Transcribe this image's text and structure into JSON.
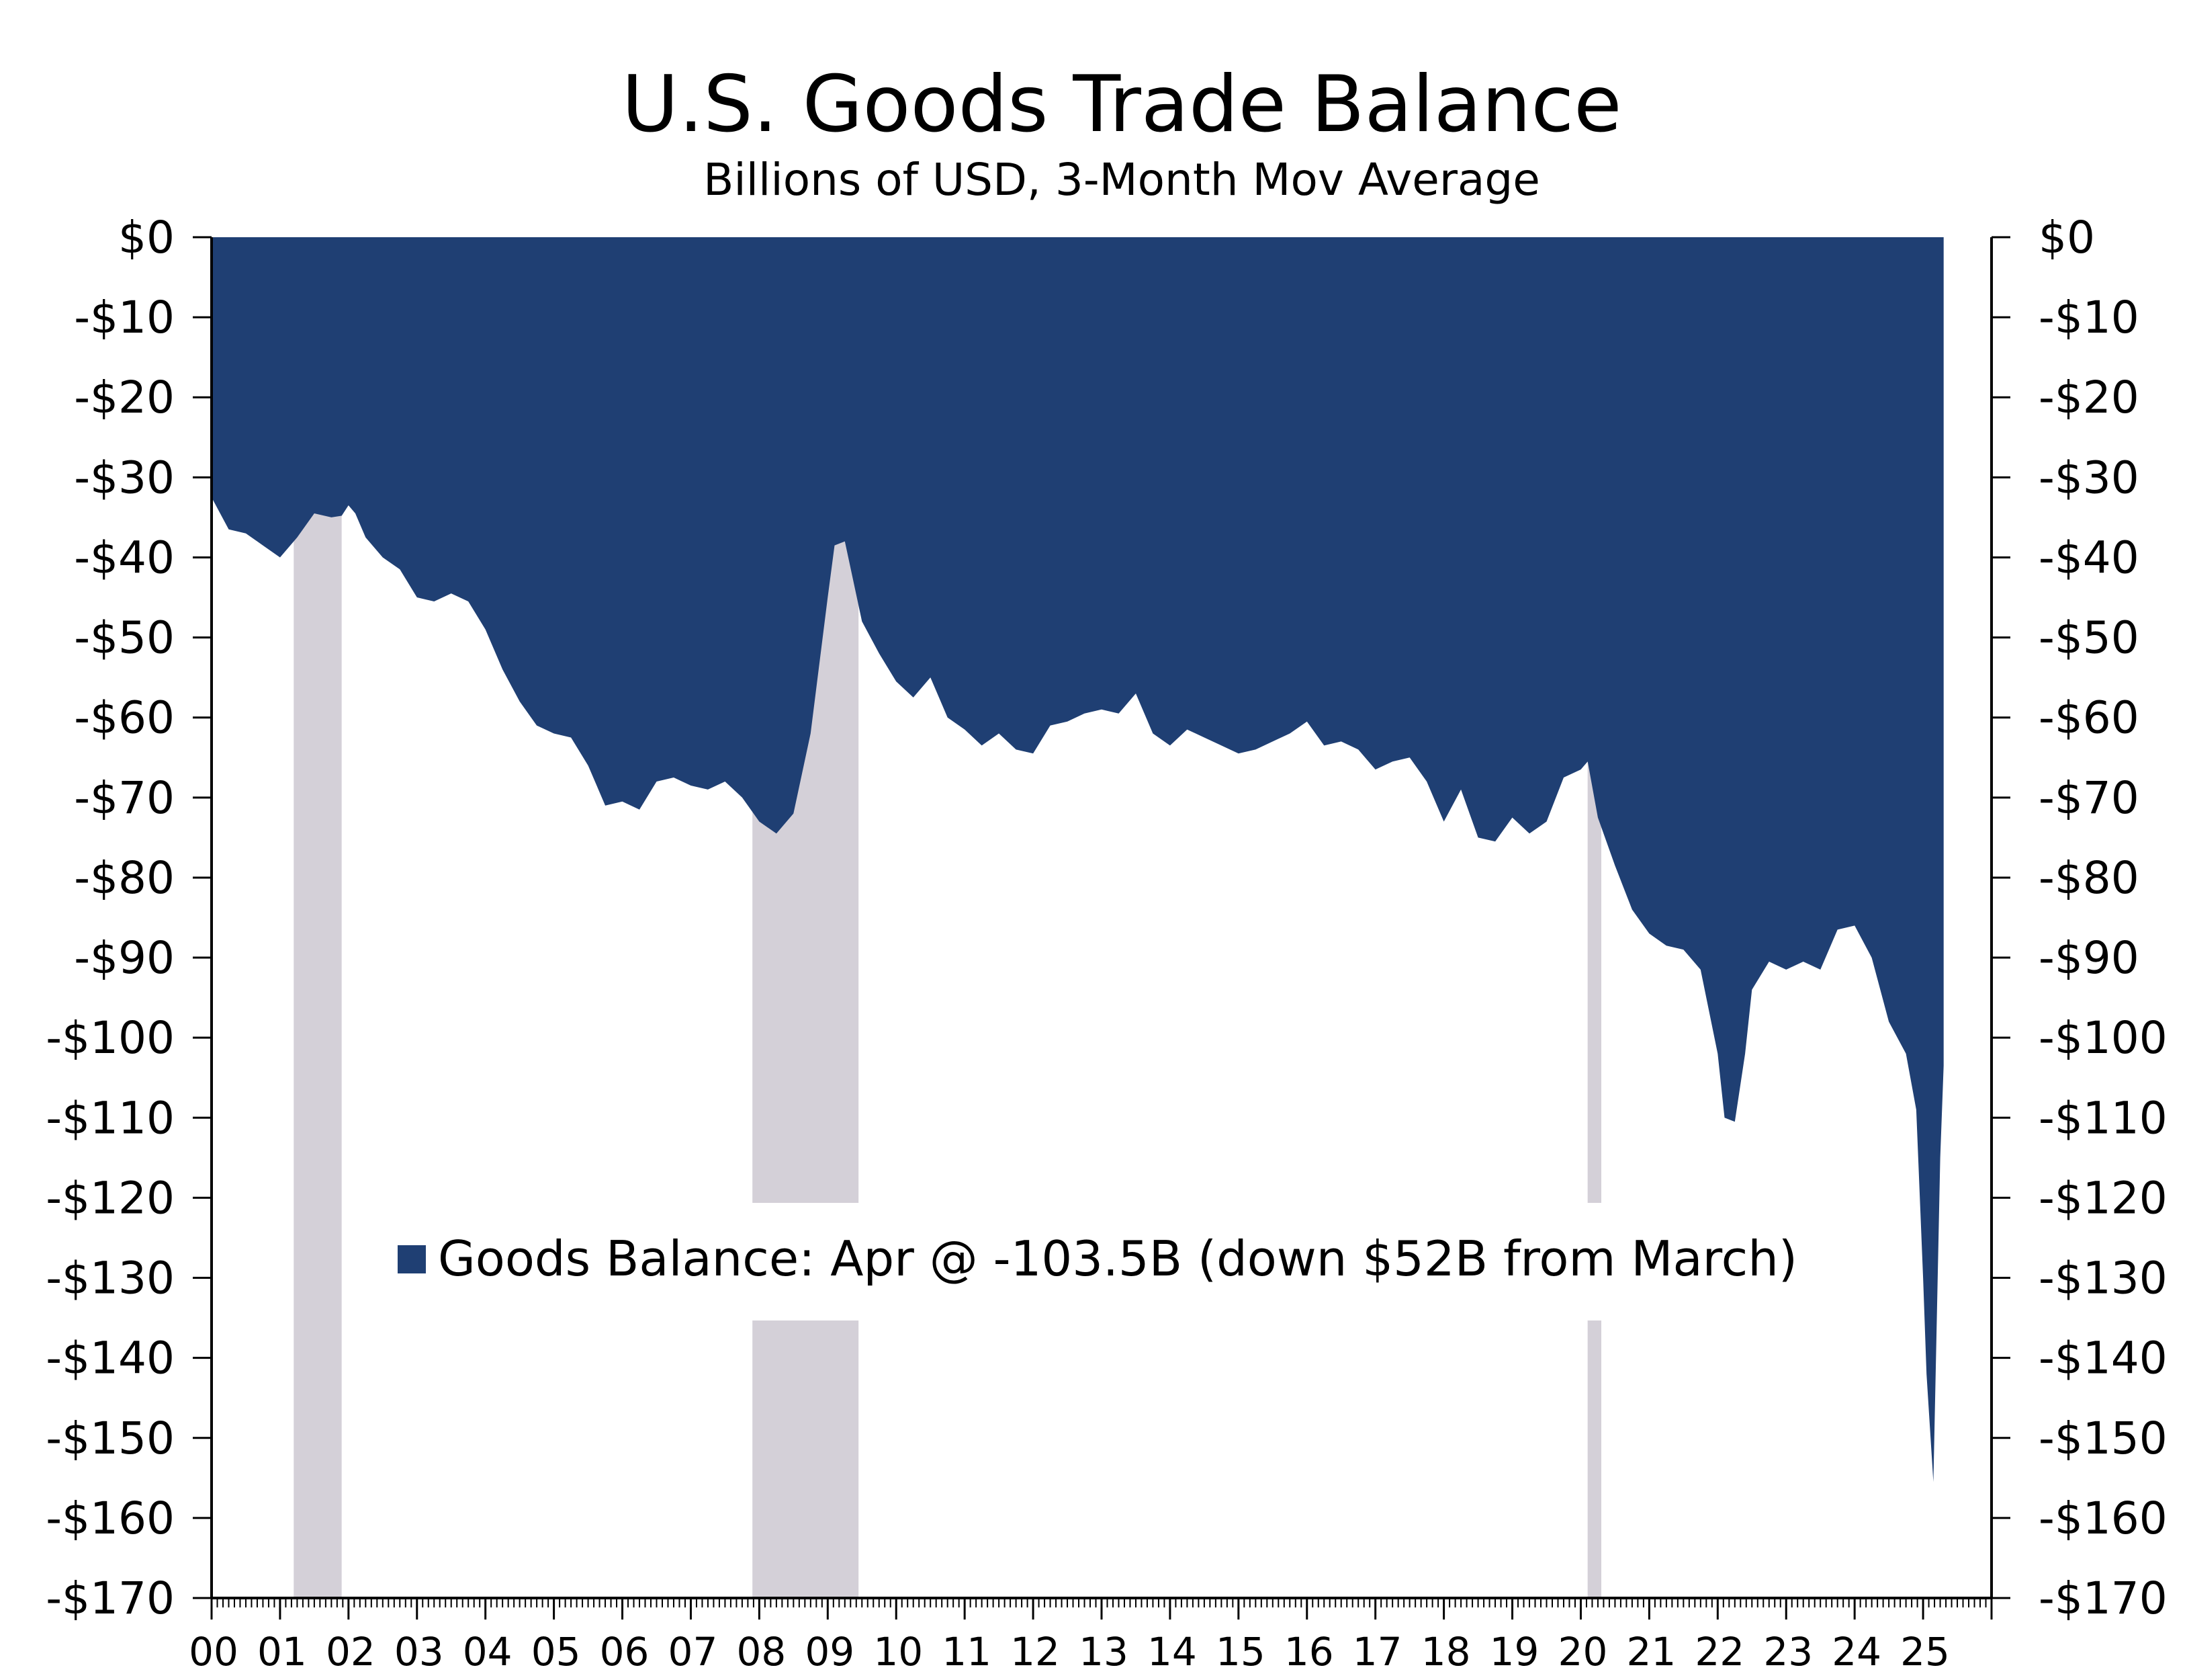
{
  "chart_data": {
    "type": "area",
    "title": "U.S. Goods Trade Balance",
    "subtitle": "Billions of USD, 3-Month Mov Average",
    "xlabel": "",
    "ylabel": "",
    "ylim": [
      -170,
      0
    ],
    "y_ticks": [
      0,
      -10,
      -20,
      -30,
      -40,
      -50,
      -60,
      -70,
      -80,
      -90,
      -100,
      -110,
      -120,
      -130,
      -140,
      -150,
      -160,
      -170
    ],
    "y_tick_labels": [
      "$0",
      "-$10",
      "-$20",
      "-$30",
      "-$40",
      "-$50",
      "-$60",
      "-$70",
      "-$80",
      "-$90",
      "-$100",
      "-$110",
      "-$120",
      "-$130",
      "-$140",
      "-$150",
      "-$160",
      "-$170"
    ],
    "x_tick_labels": [
      "00",
      "01",
      "02",
      "03",
      "04",
      "05",
      "06",
      "07",
      "08",
      "09",
      "10",
      "11",
      "12",
      "13",
      "14",
      "15",
      "16",
      "17",
      "18",
      "19",
      "20",
      "21",
      "22",
      "23",
      "24",
      "25"
    ],
    "xlim": [
      2000.0,
      2026.0
    ],
    "grid": false,
    "legend_position": "center-bottom",
    "colors": {
      "area": "#1f3f73",
      "recession": "#d4d0d8",
      "axis": "#000000"
    },
    "recessions": [
      [
        2001.2,
        2001.9
      ],
      [
        2007.9,
        2009.45
      ],
      [
        2020.1,
        2020.3
      ]
    ],
    "series": [
      {
        "name": "Goods Balance: Apr @ -103.5B (down $52B from March)",
        "x": [
          2000.0,
          2000.25,
          2000.5,
          2000.75,
          2001.0,
          2001.25,
          2001.5,
          2001.75,
          2001.9,
          2002.0,
          2002.1,
          2002.25,
          2002.5,
          2002.75,
          2003.0,
          2003.25,
          2003.5,
          2003.75,
          2004.0,
          2004.25,
          2004.5,
          2004.75,
          2005.0,
          2005.25,
          2005.5,
          2005.75,
          2006.0,
          2006.25,
          2006.5,
          2006.75,
          2007.0,
          2007.25,
          2007.5,
          2007.75,
          2008.0,
          2008.25,
          2008.5,
          2008.75,
          2009.0,
          2009.1,
          2009.25,
          2009.4,
          2009.5,
          2009.75,
          2010.0,
          2010.25,
          2010.5,
          2010.75,
          2011.0,
          2011.25,
          2011.5,
          2011.75,
          2012.0,
          2012.25,
          2012.5,
          2012.75,
          2013.0,
          2013.25,
          2013.5,
          2013.75,
          2014.0,
          2014.25,
          2014.5,
          2014.75,
          2015.0,
          2015.25,
          2015.5,
          2015.75,
          2016.0,
          2016.25,
          2016.5,
          2016.75,
          2017.0,
          2017.25,
          2017.5,
          2017.75,
          2018.0,
          2018.25,
          2018.5,
          2018.75,
          2019.0,
          2019.25,
          2019.5,
          2019.75,
          2020.0,
          2020.1,
          2020.25,
          2020.5,
          2020.75,
          2021.0,
          2021.25,
          2021.5,
          2021.75,
          2022.0,
          2022.1,
          2022.25,
          2022.4,
          2022.5,
          2022.75,
          2023.0,
          2023.25,
          2023.5,
          2023.75,
          2024.0,
          2024.25,
          2024.5,
          2024.75,
          2024.9,
          2025.0,
          2025.05,
          2025.15,
          2025.25,
          2025.3
        ],
        "values": [
          -32.5,
          -36.5,
          -37.0,
          -38.5,
          -40.0,
          -37.5,
          -34.5,
          -35.0,
          -34.8,
          -33.5,
          -34.5,
          -37.5,
          -40.0,
          -41.5,
          -45.0,
          -45.5,
          -44.5,
          -45.5,
          -49.0,
          -54.0,
          -58.0,
          -61.0,
          -62.0,
          -62.5,
          -66.0,
          -71.0,
          -70.5,
          -71.5,
          -68.0,
          -67.5,
          -68.5,
          -69.0,
          -68.0,
          -70.0,
          -73.0,
          -74.5,
          -72.0,
          -62.0,
          -45.0,
          -38.5,
          -38.0,
          -44.0,
          -48.0,
          -52.0,
          -55.5,
          -57.5,
          -55.0,
          -60.0,
          -61.5,
          -63.5,
          -62.0,
          -64.0,
          -64.5,
          -61.0,
          -60.5,
          -59.5,
          -59.0,
          -59.5,
          -57.0,
          -62.0,
          -63.5,
          -61.5,
          -62.5,
          -63.5,
          -64.5,
          -64.0,
          -63.0,
          -62.0,
          -60.5,
          -63.5,
          -63.0,
          -64.0,
          -66.5,
          -65.5,
          -65.0,
          -68.0,
          -73.0,
          -69.0,
          -75.0,
          -75.5,
          -72.5,
          -74.5,
          -73.0,
          -67.5,
          -66.5,
          -65.5,
          -72.5,
          -78.5,
          -84.0,
          -87.0,
          -88.5,
          -89.0,
          -91.5,
          -102.0,
          -110.0,
          -110.5,
          -102.0,
          -94.0,
          -90.5,
          -91.5,
          -90.5,
          -91.5,
          -86.5,
          -86.0,
          -90.0,
          -98.0,
          -102.0,
          -109.0,
          -130.0,
          -142.0,
          -155.5,
          -115.0,
          -103.5
        ]
      }
    ]
  }
}
